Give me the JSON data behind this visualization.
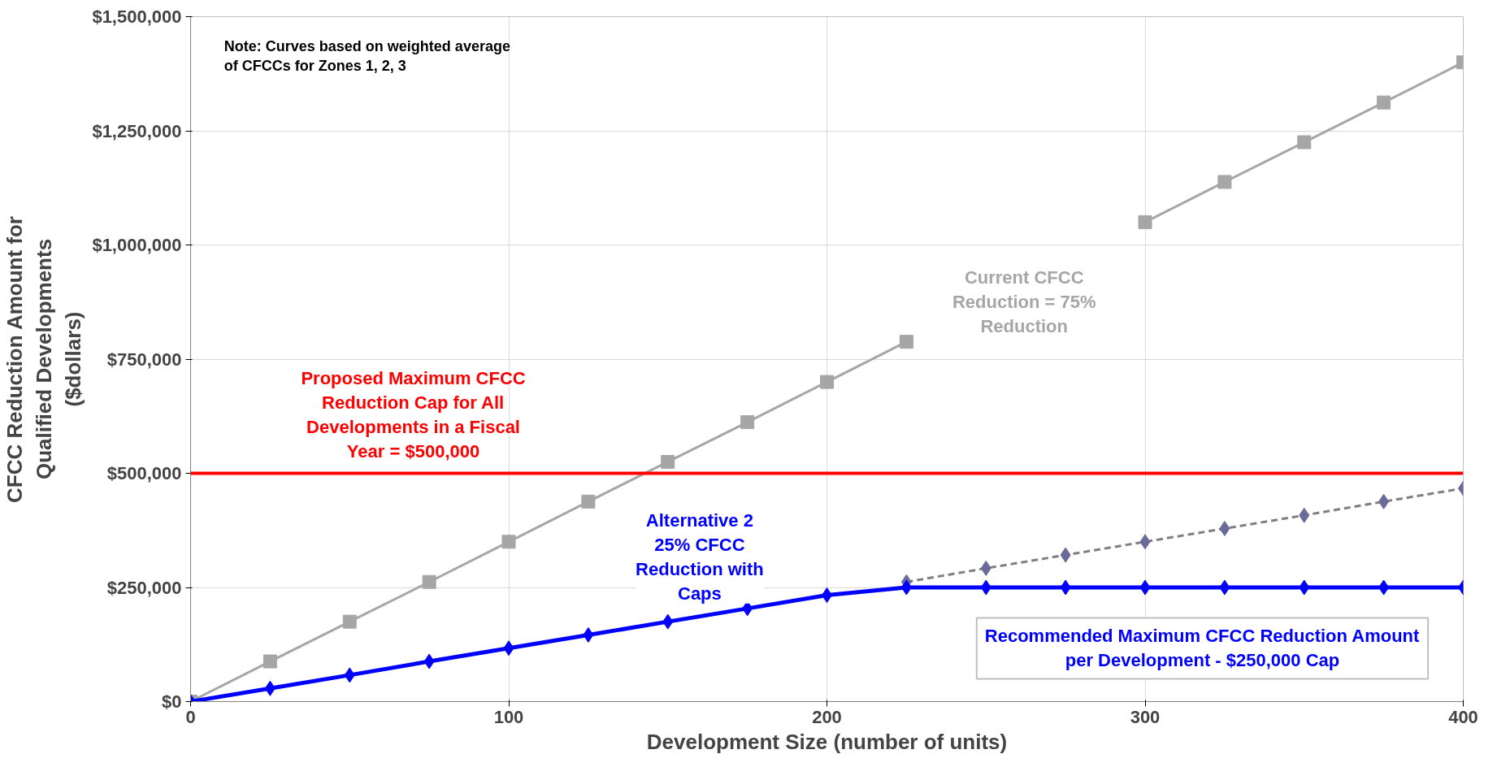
{
  "chart_data": {
    "type": "line",
    "xlabel": "Development Size (number of units)",
    "ylabel": "CFCC Reduction Amount for Qualified Developments ($dollars)",
    "xlim": [
      0,
      400
    ],
    "xticks": [
      0,
      100,
      200,
      300,
      400
    ],
    "ylim": [
      0,
      1500000
    ],
    "yticks": [
      {
        "value": 0,
        "label": "$0"
      },
      {
        "value": 250000,
        "label": "$250,000"
      },
      {
        "value": 500000,
        "label": "$500,000"
      },
      {
        "value": 750000,
        "label": "$750,000"
      },
      {
        "value": 1000000,
        "label": "$1,000,000"
      },
      {
        "value": 1250000,
        "label": "$1,250,000"
      },
      {
        "value": 1500000,
        "label": "$1,500,000"
      }
    ],
    "grid": true,
    "series": [
      {
        "name": "Current CFCC Reduction = 75% Reduction",
        "color": "#a6a6a6",
        "marker": "square",
        "line_style": "solid",
        "x": [
          0,
          25,
          50,
          75,
          100,
          125,
          150,
          175,
          200,
          225,
          250,
          275,
          300,
          325,
          350,
          375,
          400
        ],
        "values": [
          0,
          88000,
          175000,
          262000,
          350000,
          438000,
          525000,
          612000,
          700000,
          788000,
          null,
          null,
          1050000,
          1138000,
          1225000,
          1312000,
          1400000
        ]
      },
      {
        "color": "#7f7f7f",
        "marker": "diamond",
        "line_style": "dashed",
        "x": [
          225,
          250,
          275,
          300,
          325,
          350,
          375,
          400
        ],
        "values": [
          262000,
          292000,
          321000,
          350000,
          379000,
          408000,
          438000,
          467000
        ]
      },
      {
        "name": "Alternative 2 25% CFCC Reduction with Caps",
        "color": "#0000ff",
        "marker": "diamond",
        "line_style": "solid",
        "x": [
          0,
          25,
          50,
          75,
          100,
          125,
          150,
          175,
          200,
          225,
          250,
          275,
          300,
          325,
          350,
          375,
          400
        ],
        "values": [
          0,
          29000,
          58000,
          88000,
          117000,
          146000,
          175000,
          204000,
          233000,
          250000,
          250000,
          250000,
          250000,
          250000,
          250000,
          250000,
          250000
        ]
      }
    ],
    "ref_lines": [
      {
        "axis": "y",
        "value": 500000,
        "label": "Proposed Maximum CFCC Reduction Cap for All Developments in a Fiscal Year = $500,000",
        "color": "#ff0000"
      }
    ],
    "annotations": [
      "Note: Curves based on weighted average of CFCCs for Zones 1, 2, 3",
      "Recommended Maximum CFCC Reduction Amount per Development - $250,000 Cap"
    ]
  }
}
